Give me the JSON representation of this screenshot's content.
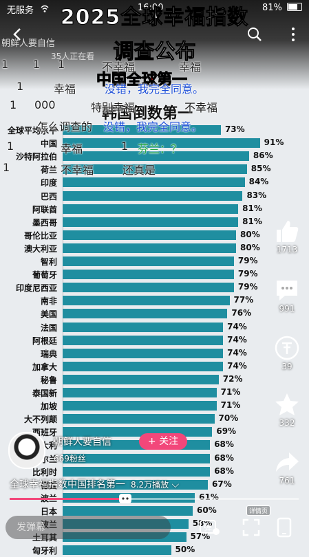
{
  "status": {
    "carrier": "无服务",
    "time": "16:00",
    "battery": "81%"
  },
  "header": {
    "account": "朝鲜人要自信",
    "watchers": "35人正在看"
  },
  "video": {
    "title_line1": "2025全球幸福指数",
    "title_line2": "调查公布",
    "caption_red": "中国全球第一",
    "caption_dark": "韩国倒数第一"
  },
  "danmaku": [
    {
      "text": "1",
      "cls": ""
    },
    {
      "text": "1",
      "cls": ""
    },
    {
      "text": "1",
      "cls": ""
    },
    {
      "text": "不幸福",
      "cls": ""
    },
    {
      "text": "幸福",
      "cls": ""
    },
    {
      "text": "1",
      "cls": ""
    },
    {
      "text": "幸福",
      "cls": ""
    },
    {
      "text": "没错，我完全同意。",
      "cls": "blue"
    },
    {
      "text": "1",
      "cls": ""
    },
    {
      "text": "000",
      "cls": ""
    },
    {
      "text": "特别幸福",
      "cls": ""
    },
    {
      "text": "不幸福",
      "cls": ""
    },
    {
      "text": "怎么调查的",
      "cls": ""
    },
    {
      "text": "没错，我完全同意。",
      "cls": "blue"
    },
    {
      "text": "1",
      "cls": ""
    },
    {
      "text": "幸福",
      "cls": ""
    },
    {
      "text": "1",
      "cls": ""
    },
    {
      "text": "芬兰：？",
      "cls": "green"
    },
    {
      "text": "1",
      "cls": ""
    },
    {
      "text": "不幸福",
      "cls": ""
    },
    {
      "text": "还真是",
      "cls": ""
    }
  ],
  "chart_data": {
    "type": "bar",
    "orientation": "horizontal",
    "categories": [
      "全球平均水平",
      "中国",
      "沙特阿拉伯",
      "荷兰",
      "印度",
      "巴西",
      "阿联酋",
      "墨西哥",
      "哥伦比亚",
      "澳大利亚",
      "智利",
      "葡萄牙",
      "印度尼西亚",
      "南非",
      "美国",
      "法国",
      "阿根廷",
      "瑞典",
      "加拿大",
      "秘鲁",
      "泰国新",
      "加坡",
      "大不列颠",
      "西班牙",
      "意大利",
      "爱尔兰",
      "比利时",
      "德国",
      "波兰",
      "日本",
      "波兰",
      "土耳其",
      "匈牙利"
    ],
    "values": [
      73,
      91,
      86,
      85,
      84,
      83,
      81,
      81,
      80,
      80,
      79,
      79,
      79,
      77,
      76,
      74,
      74,
      74,
      74,
      72,
      71,
      71,
      70,
      69,
      68,
      68,
      68,
      67,
      61,
      60,
      58,
      57,
      50
    ],
    "value_labels": [
      "73%",
      "91%",
      "86%",
      "85%",
      "84%",
      "83%",
      "81%",
      "81%",
      "80%",
      "80%",
      "79%",
      "79%",
      "79%",
      "77%",
      "76%",
      "74%",
      "74%",
      "74%",
      "74%",
      "72%",
      "71%",
      "71%",
      "70%",
      "69%",
      "68%",
      "68%",
      "68%",
      "67%",
      "61%",
      "60%",
      "58%",
      "57%",
      "50%"
    ],
    "xlim": [
      0,
      100
    ],
    "bar_color": "#1f8ea0"
  },
  "side": {
    "likes": "1713",
    "comments": "991",
    "coins": "39",
    "favorites": "332",
    "shares": "761"
  },
  "author": {
    "name": "朝鲜人要自信",
    "follow": "+ 关注",
    "fans": "669粉丝"
  },
  "footer": {
    "video_title": "全球幸福指数中国排名第一",
    "plays": "8.2万播放",
    "detail_badge": "详情页",
    "danmu_placeholder": "发弹幕",
    "danmu_toggle": "弹",
    "progress": 0.4
  }
}
